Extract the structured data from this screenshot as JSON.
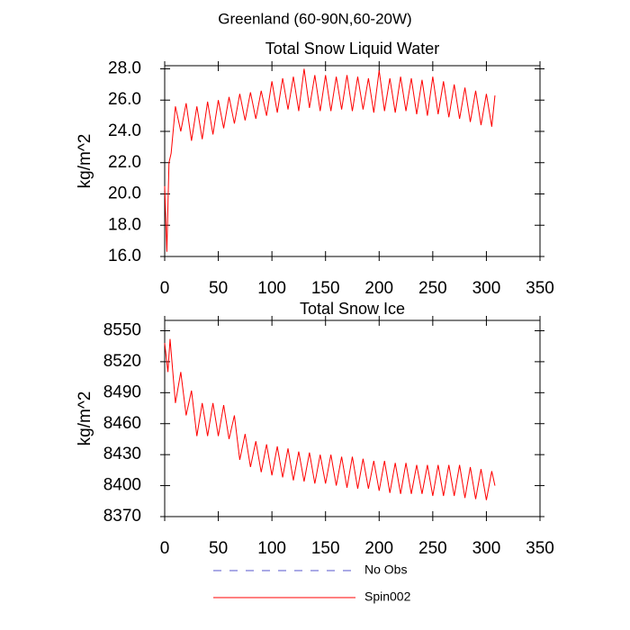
{
  "title": "Greenland (60-90N,60-20W)",
  "legend": [
    {
      "name": "No Obs",
      "color": "#5555cc",
      "dashed": true
    },
    {
      "name": "Spin002",
      "color": "#ff0000",
      "dashed": false
    }
  ],
  "chart_data": [
    {
      "type": "line",
      "title": "Total Snow Liquid Water",
      "ylabel": "kg/m^2",
      "xlim": [
        0,
        350
      ],
      "xticks": [
        0,
        50,
        100,
        150,
        200,
        250,
        300,
        350
      ],
      "ylim": [
        16,
        28.2
      ],
      "yticks": [
        {
          "value": 16,
          "label": "16.0"
        },
        {
          "value": 18,
          "label": "18.0"
        },
        {
          "value": 20,
          "label": "20.0"
        },
        {
          "value": 22,
          "label": "22.0"
        },
        {
          "value": 24,
          "label": "24.0"
        },
        {
          "value": 26,
          "label": "26.0"
        },
        {
          "value": 28,
          "label": "28.0"
        }
      ],
      "x": [
        0,
        2,
        4,
        6,
        10,
        15,
        20,
        25,
        30,
        35,
        40,
        45,
        50,
        55,
        60,
        65,
        70,
        75,
        80,
        85,
        90,
        95,
        100,
        105,
        110,
        115,
        120,
        125,
        130,
        135,
        140,
        145,
        150,
        155,
        160,
        165,
        170,
        175,
        180,
        185,
        190,
        195,
        200,
        205,
        210,
        215,
        220,
        225,
        230,
        235,
        240,
        245,
        250,
        255,
        260,
        265,
        270,
        275,
        280,
        285,
        290,
        295,
        300,
        305,
        308
      ],
      "series": [
        {
          "color": "#ff0000",
          "values": [
            20.5,
            16.3,
            22.0,
            22.6,
            25.6,
            24.0,
            25.8,
            23.4,
            25.6,
            23.5,
            25.9,
            23.8,
            26.0,
            24.2,
            26.2,
            24.5,
            26.4,
            24.7,
            26.5,
            24.8,
            26.6,
            25.0,
            27.2,
            25.2,
            27.4,
            25.4,
            27.5,
            25.3,
            28.0,
            25.5,
            27.6,
            25.3,
            27.6,
            25.3,
            27.5,
            25.4,
            27.6,
            25.3,
            27.5,
            25.4,
            27.4,
            25.2,
            27.9,
            25.3,
            27.4,
            25.2,
            27.5,
            25.3,
            27.4,
            25.1,
            27.3,
            25.0,
            27.5,
            25.1,
            27.2,
            24.9,
            27.0,
            24.8,
            26.8,
            24.6,
            26.6,
            24.4,
            26.4,
            24.3,
            26.3
          ]
        }
      ]
    },
    {
      "type": "line",
      "title": "Total Snow Ice",
      "ylabel": "kg/m^2",
      "xlim": [
        0,
        350
      ],
      "xticks": [
        0,
        50,
        100,
        150,
        200,
        250,
        300,
        350
      ],
      "ylim": [
        8370,
        8560
      ],
      "yticks": [
        8370,
        8400,
        8430,
        8460,
        8490,
        8520,
        8550
      ],
      "x": [
        0,
        3,
        5,
        10,
        15,
        20,
        25,
        30,
        35,
        40,
        45,
        50,
        55,
        60,
        65,
        70,
        75,
        80,
        85,
        90,
        95,
        100,
        105,
        110,
        115,
        120,
        125,
        130,
        135,
        140,
        145,
        150,
        155,
        160,
        165,
        170,
        175,
        180,
        185,
        190,
        195,
        200,
        205,
        210,
        215,
        220,
        225,
        230,
        235,
        240,
        245,
        250,
        255,
        260,
        265,
        270,
        275,
        280,
        285,
        290,
        295,
        300,
        305,
        308
      ],
      "series": [
        {
          "color": "#ff0000",
          "values": [
            8538,
            8510,
            8542,
            8480,
            8510,
            8468,
            8492,
            8448,
            8480,
            8448,
            8480,
            8448,
            8478,
            8445,
            8468,
            8425,
            8450,
            8418,
            8443,
            8413,
            8440,
            8410,
            8438,
            8408,
            8436,
            8405,
            8433,
            8404,
            8432,
            8402,
            8430,
            8402,
            8430,
            8400,
            8428,
            8398,
            8428,
            8397,
            8426,
            8397,
            8424,
            8395,
            8424,
            8393,
            8422,
            8392,
            8422,
            8392,
            8420,
            8392,
            8420,
            8390,
            8420,
            8390,
            8420,
            8390,
            8420,
            8388,
            8418,
            8387,
            8416,
            8386,
            8414,
            8400
          ]
        }
      ]
    }
  ]
}
